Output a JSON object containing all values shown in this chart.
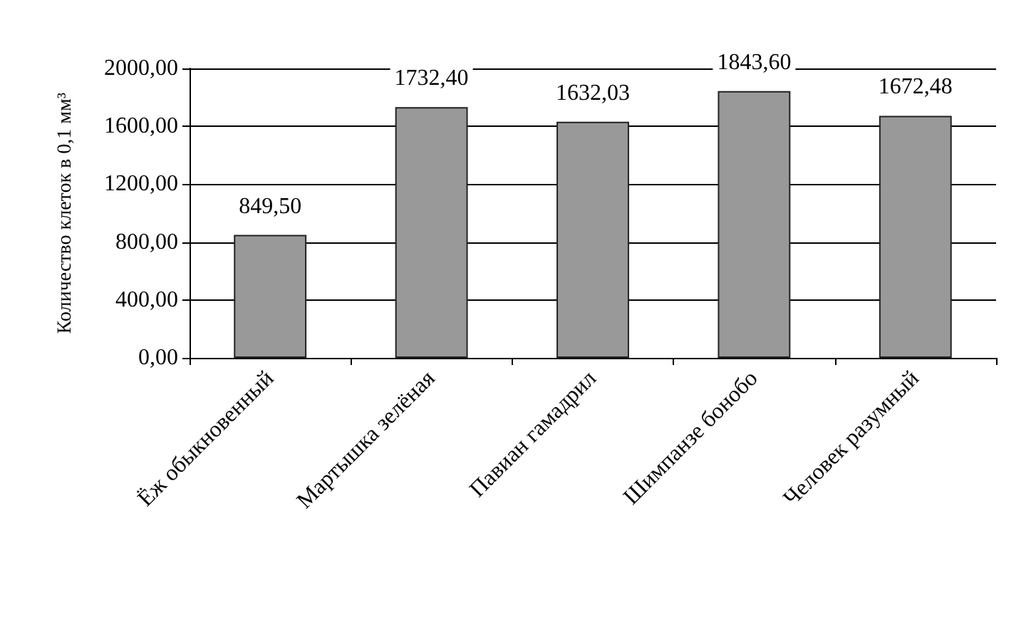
{
  "chart_data": {
    "type": "bar",
    "ylabel": "Количество клеток в 0,1 мм³",
    "categories": [
      "Ёж обыкновенный",
      "Мартышка зелёная",
      "Павиан гамадрил",
      "Шимпанзе бонобо",
      "Человек разумный"
    ],
    "values": [
      849.5,
      1732.4,
      1632.03,
      1843.6,
      1672.48
    ],
    "value_labels": [
      "849,50",
      "1732,40",
      "1632,03",
      "1843,60",
      "1672,48"
    ],
    "color": "#999999",
    "ylim": [
      0,
      2000
    ],
    "yticks": [
      {
        "value": 0,
        "label": "0,00"
      },
      {
        "value": 400,
        "label": "400,00"
      },
      {
        "value": 800,
        "label": "800,00"
      },
      {
        "value": 1200,
        "label": "1200,00"
      },
      {
        "value": 1600,
        "label": "1600,00"
      },
      {
        "value": 2000,
        "label": "2000,00"
      }
    ],
    "grid": "y"
  }
}
